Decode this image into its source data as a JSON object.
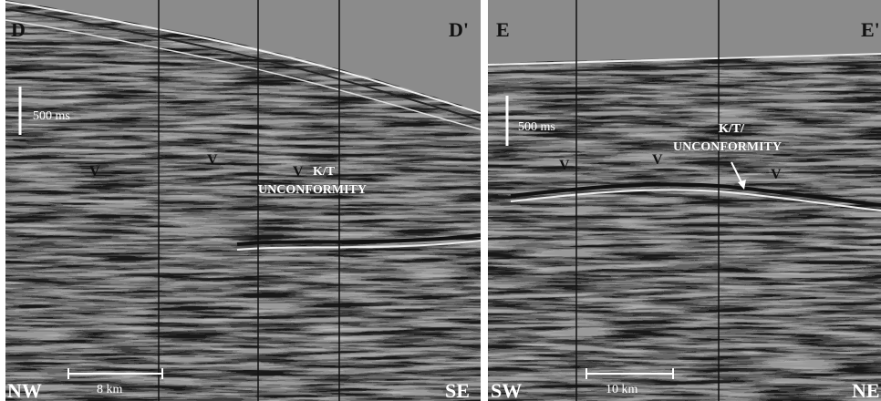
{
  "panels": [
    {
      "top_left": "D",
      "top_right": "D'",
      "time_scale": "500 ms",
      "annotation": [
        "K/T",
        "UNCONFORMITY"
      ],
      "markers": [
        "V",
        "V",
        "V"
      ],
      "bottom_left": "NW",
      "bottom_right": "SE",
      "distance_scale": "8 km"
    },
    {
      "top_left": "E",
      "top_right": "E'",
      "time_scale": "500 ms",
      "annotation": [
        "K/T/",
        "UNCONFORMITY"
      ],
      "markers": [
        "V",
        "V",
        "V"
      ],
      "bottom_left": "SW",
      "bottom_right": "NE",
      "distance_scale": "10 km"
    }
  ]
}
